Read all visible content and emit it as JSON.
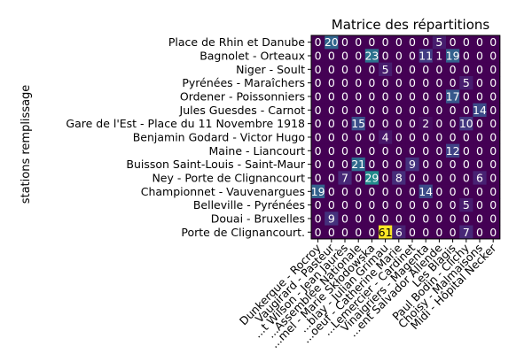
{
  "chart_data": {
    "type": "heatmap",
    "title": "Matrice des répartitions",
    "ylabel": "stations remplissage",
    "xlabel": "",
    "rows": [
      "Place de Rhin et Danube",
      "Bagnolet - Orteaux",
      "Niger - Soult",
      "Pyrénées - Maraîchers",
      "Ordener - Poissonniers",
      "Jules Guesdes - Carnot",
      "Gare de l'Est - Place du 11 Novembre 1918",
      "Benjamin Godard - Victor Hugo",
      "Maine - Liancourt",
      "Buisson Saint-Louis - Saint-Maur",
      "Ney - Porte de Clignancourt",
      "Championnet - Vauvenargues",
      "Belleville - Pyrénées",
      "Douai - Bruxelles",
      "Porte de Clignancourt."
    ],
    "columns": [
      "Dunkerque - Rocroy",
      "Vaugirard - Pasteur",
      "...t Wilson - Jean Jaurès",
      "...Assemblée Nationale",
      "...mel - Marie Skłodowska",
      "...blay - Julian Grimau",
      "...oeuf - Catherine Marie",
      "...Lemercier - Cardinet",
      "Vinaigriers - Magenta",
      "...ent Salvador Allende",
      "Les Blagis",
      "Paul Bodin - Clichy",
      "Choisy - Malmaisons",
      "Midi - Hôpital Necker"
    ],
    "values": [
      [
        0,
        20,
        0,
        0,
        0,
        0,
        0,
        0,
        0,
        5,
        0,
        0,
        0,
        0
      ],
      [
        0,
        0,
        0,
        0,
        23,
        0,
        0,
        0,
        11,
        1,
        19,
        0,
        0,
        0
      ],
      [
        0,
        0,
        0,
        0,
        0,
        5,
        0,
        0,
        0,
        0,
        0,
        0,
        0,
        0
      ],
      [
        0,
        0,
        0,
        0,
        0,
        0,
        0,
        0,
        0,
        0,
        0,
        5,
        0,
        0
      ],
      [
        0,
        0,
        0,
        0,
        0,
        0,
        0,
        0,
        0,
        0,
        17,
        0,
        0,
        0
      ],
      [
        0,
        0,
        0,
        0,
        0,
        0,
        0,
        0,
        0,
        0,
        0,
        0,
        14,
        0
      ],
      [
        0,
        0,
        0,
        15,
        0,
        0,
        0,
        0,
        2,
        0,
        0,
        10,
        0,
        0
      ],
      [
        0,
        0,
        0,
        0,
        0,
        4,
        0,
        0,
        0,
        0,
        0,
        0,
        0,
        0
      ],
      [
        0,
        0,
        0,
        0,
        0,
        0,
        0,
        0,
        0,
        0,
        12,
        0,
        0,
        0
      ],
      [
        0,
        0,
        0,
        21,
        0,
        0,
        0,
        9,
        0,
        0,
        0,
        0,
        0,
        0
      ],
      [
        0,
        0,
        7,
        0,
        29,
        0,
        8,
        0,
        0,
        0,
        0,
        0,
        6,
        0
      ],
      [
        19,
        0,
        0,
        0,
        0,
        0,
        0,
        0,
        14,
        0,
        0,
        0,
        0,
        0
      ],
      [
        0,
        0,
        0,
        0,
        0,
        0,
        0,
        0,
        0,
        0,
        0,
        5,
        0,
        0
      ],
      [
        0,
        9,
        0,
        0,
        0,
        0,
        0,
        0,
        0,
        0,
        0,
        0,
        0,
        0
      ],
      [
        0,
        0,
        0,
        0,
        0,
        61,
        6,
        0,
        0,
        0,
        0,
        7,
        0,
        0
      ]
    ],
    "value_range": [
      0,
      61
    ],
    "colormap": "viridis",
    "annotated": true
  }
}
